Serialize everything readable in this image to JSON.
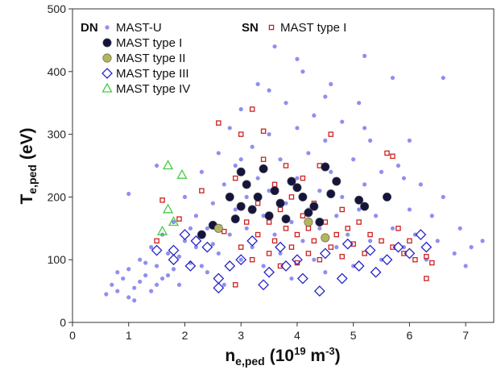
{
  "chart_data": {
    "type": "scatter",
    "x_label": {
      "base": "n",
      "sub": "e,ped",
      "rest": "(10",
      "sup": "19",
      "rest2": " m",
      "sup2": "-3",
      "end": ")"
    },
    "y_label": {
      "base": "T",
      "sub": "e,ped",
      "rest": "(eV)"
    },
    "xlim": [
      0,
      7.5
    ],
    "ylim": [
      0,
      500
    ],
    "xticks": [
      0,
      1,
      2,
      3,
      4,
      5,
      6,
      7
    ],
    "yticks": [
      0,
      100,
      200,
      300,
      400,
      500
    ],
    "legend_groups": [
      {
        "title": "DN",
        "series": [
          0,
          2,
          3,
          4,
          5
        ]
      },
      {
        "title": "SN",
        "series": [
          1
        ]
      }
    ],
    "series": [
      {
        "name": "MAST-U",
        "color": "#8f8ff0",
        "marker": "circle",
        "filled": true,
        "x": [
          0.6,
          0.7,
          0.8,
          0.9,
          1.0,
          1.0,
          1.1,
          1.2,
          1.2,
          1.3,
          1.4,
          1.4,
          1.5,
          1.6,
          1.6,
          1.7,
          1.8,
          1.8,
          1.9,
          2.0,
          2.0,
          2.1,
          2.2,
          2.2,
          2.3,
          2.4,
          2.4,
          2.5,
          2.6,
          2.6,
          2.7,
          2.7,
          2.8,
          2.8,
          2.9,
          2.9,
          3.0,
          3.0,
          3.1,
          3.1,
          3.2,
          3.2,
          3.3,
          3.3,
          3.4,
          3.4,
          3.5,
          3.5,
          3.6,
          3.6,
          3.7,
          3.7,
          3.8,
          3.8,
          3.9,
          3.9,
          4.0,
          4.0,
          4.1,
          4.1,
          4.2,
          4.2,
          4.3,
          4.3,
          4.4,
          4.4,
          4.5,
          4.5,
          4.6,
          4.6,
          4.7,
          4.7,
          4.8,
          4.8,
          4.9,
          5.0,
          5.0,
          5.1,
          5.1,
          5.2,
          5.3,
          5.3,
          5.4,
          5.5,
          5.5,
          5.6,
          5.7,
          5.7,
          5.8,
          5.9,
          6.0,
          6.0,
          6.1,
          6.2,
          6.3,
          6.4,
          6.5,
          6.6,
          6.8,
          6.9,
          7.0,
          7.1,
          7.3,
          0.8,
          1.1,
          1.3,
          1.5,
          1.7,
          1.9,
          2.1,
          2.3,
          2.5,
          3.0,
          3.5,
          4.0,
          4.5,
          5.2,
          5.9,
          1.0,
          1.5,
          6.6,
          5.2
        ],
        "y": [
          45,
          60,
          50,
          70,
          40,
          85,
          55,
          100,
          65,
          75,
          120,
          50,
          90,
          140,
          70,
          110,
          160,
          85,
          60,
          130,
          200,
          95,
          170,
          120,
          240,
          80,
          150,
          190,
          110,
          270,
          220,
          60,
          140,
          310,
          180,
          250,
          100,
          340,
          200,
          150,
          280,
          120,
          230,
          380,
          170,
          90,
          300,
          210,
          140,
          440,
          260,
          110,
          190,
          350,
          160,
          70,
          230,
          310,
          130,
          400,
          270,
          180,
          100,
          330,
          210,
          150,
          290,
          80,
          240,
          380,
          170,
          120,
          320,
          200,
          140,
          260,
          90,
          180,
          350,
          220,
          130,
          290,
          170,
          240,
          100,
          200,
          390,
          150,
          250,
          120,
          180,
          290,
          140,
          220,
          100,
          170,
          130,
          200,
          110,
          150,
          90,
          120,
          130,
          80,
          35,
          95,
          60,
          75,
          105,
          150,
          90,
          125,
          260,
          370,
          420,
          360,
          310,
          230,
          205,
          250,
          390,
          425
        ]
      },
      {
        "name": "MAST type I",
        "color": "#cc2222",
        "marker": "square",
        "filled": false,
        "x": [
          1.5,
          1.6,
          1.9,
          2.3,
          2.6,
          2.7,
          2.9,
          3.0,
          3.0,
          3.1,
          3.2,
          3.3,
          3.3,
          3.4,
          3.5,
          3.5,
          3.6,
          3.6,
          3.7,
          3.7,
          3.8,
          3.8,
          3.9,
          3.9,
          4.0,
          4.0,
          4.1,
          4.1,
          4.2,
          4.2,
          4.3,
          4.3,
          4.4,
          4.4,
          4.5,
          4.6,
          4.7,
          4.8,
          4.8,
          4.9,
          5.0,
          5.1,
          5.2,
          5.3,
          5.5,
          5.6,
          5.7,
          5.8,
          5.9,
          6.0,
          6.1,
          6.3,
          6.4,
          6.3,
          3.2,
          4.6,
          5.7,
          2.9,
          3.4
        ],
        "y": [
          130,
          195,
          165,
          210,
          318,
          145,
          230,
          120,
          300,
          160,
          100,
          190,
          140,
          260,
          110,
          160,
          220,
          130,
          90,
          180,
          150,
          250,
          120,
          200,
          140,
          95,
          170,
          230,
          110,
          150,
          190,
          130,
          250,
          100,
          160,
          120,
          140,
          180,
          105,
          150,
          125,
          160,
          110,
          140,
          130,
          270,
          120,
          150,
          110,
          130,
          100,
          105,
          95,
          70,
          340,
          300,
          265,
          60,
          305
        ]
      },
      {
        "name": "MAST type I",
        "color": "#14143c",
        "marker": "circle-big",
        "filled": true,
        "x": [
          2.8,
          2.9,
          3.0,
          3.1,
          3.2,
          3.3,
          3.4,
          3.5,
          3.6,
          3.7,
          3.8,
          3.9,
          4.0,
          4.1,
          4.2,
          4.3,
          4.5,
          4.6,
          4.7,
          5.1,
          5.2,
          5.6,
          2.3,
          2.5,
          3.0,
          4.4
        ],
        "y": [
          200,
          165,
          240,
          220,
          180,
          200,
          245,
          170,
          210,
          190,
          165,
          225,
          215,
          200,
          175,
          185,
          248,
          205,
          225,
          195,
          185,
          200,
          140,
          155,
          185,
          160
        ]
      },
      {
        "name": "MAST type II",
        "color": "#b5b55a",
        "marker": "circle-big",
        "filled": true,
        "x": [
          4.2,
          4.5,
          2.6
        ],
        "y": [
          160,
          135,
          150
        ]
      },
      {
        "name": "MAST type III",
        "color": "#2626c8",
        "marker": "diamond",
        "filled": false,
        "x": [
          1.5,
          1.8,
          1.8,
          2.0,
          2.2,
          2.4,
          2.6,
          2.6,
          2.8,
          3.0,
          3.2,
          3.4,
          3.5,
          3.7,
          4.0,
          4.1,
          4.4,
          4.5,
          4.8,
          4.9,
          5.1,
          5.3,
          5.6,
          5.8,
          6.0,
          6.2,
          6.3,
          2.1,
          3.8,
          5.4
        ],
        "y": [
          115,
          100,
          115,
          140,
          130,
          120,
          70,
          55,
          90,
          100,
          130,
          60,
          80,
          120,
          100,
          70,
          50,
          110,
          70,
          125,
          90,
          115,
          100,
          120,
          110,
          140,
          120,
          90,
          90,
          80
        ]
      },
      {
        "name": "MAST type IV",
        "color": "#44cc44",
        "marker": "triangle",
        "filled": false,
        "x": [
          1.6,
          1.7,
          1.8,
          1.7,
          1.95
        ],
        "y": [
          145,
          180,
          160,
          250,
          235
        ]
      }
    ]
  }
}
